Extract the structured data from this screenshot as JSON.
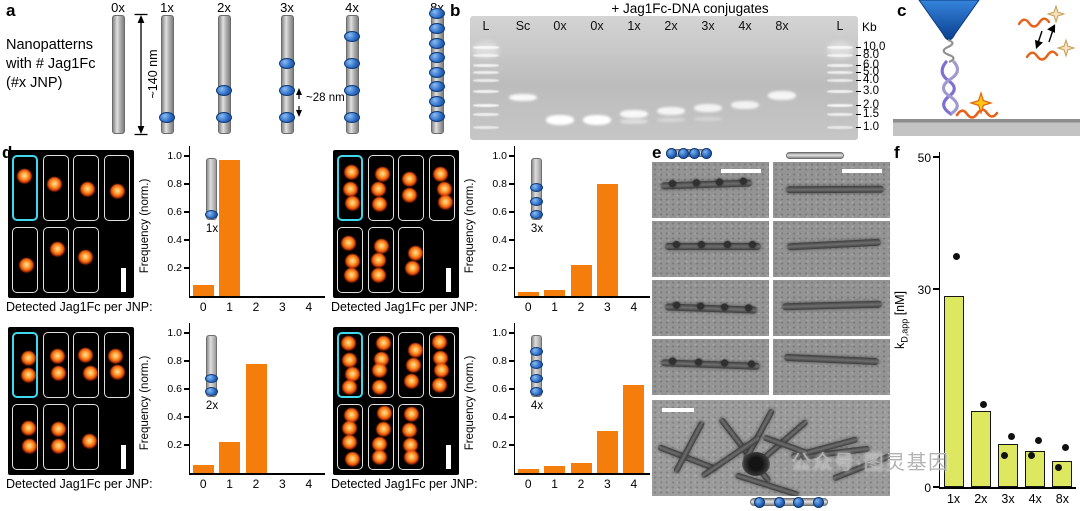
{
  "watermark": "公众号·图灵基因",
  "panel_a": {
    "label": "a",
    "caption_lines": [
      "Nanopatterns",
      "with # Jag1Fc",
      "(#x JNP)"
    ],
    "height_annotation": "~140 nm",
    "spacing_annotation": "~28 nm",
    "rods": [
      {
        "label": "0x",
        "dots": 0
      },
      {
        "label": "1x",
        "dots": 1
      },
      {
        "label": "2x",
        "dots": 2
      },
      {
        "label": "3x",
        "dots": 3
      },
      {
        "label": "4x",
        "dots": 4
      },
      {
        "label": "8x",
        "dots": 8
      }
    ]
  },
  "panel_b": {
    "label": "b",
    "header": "+ Jag1Fc-DNA conjugates",
    "kb_title": "Kb",
    "ladder_marks": [
      {
        "kb": "10.0",
        "y": 30
      },
      {
        "kb": "8.0",
        "y": 38
      },
      {
        "kb": "6.0",
        "y": 48
      },
      {
        "kb": "5.0",
        "y": 55
      },
      {
        "kb": "4.0",
        "y": 63
      },
      {
        "kb": "3.0",
        "y": 74
      },
      {
        "kb": "2.0",
        "y": 88
      },
      {
        "kb": "1.5",
        "y": 97
      },
      {
        "kb": "1.0",
        "y": 110
      }
    ],
    "lanes": [
      {
        "label": "L",
        "ladder": true
      },
      {
        "label": "Sc",
        "bands": [
          {
            "y": 78,
            "h": 7,
            "a": 0.92
          }
        ]
      },
      {
        "label": "0x",
        "bands": [
          {
            "y": 99,
            "h": 10,
            "a": 1
          }
        ]
      },
      {
        "label": "0x",
        "conjugate": true,
        "bands": [
          {
            "y": 99,
            "h": 10,
            "a": 1
          }
        ]
      },
      {
        "label": "1x",
        "conjugate": true,
        "bands": [
          {
            "y": 94,
            "h": 8,
            "a": 0.9
          },
          {
            "y": 103,
            "h": 5,
            "a": 0.45
          }
        ]
      },
      {
        "label": "2x",
        "conjugate": true,
        "bands": [
          {
            "y": 91,
            "h": 8,
            "a": 0.85
          },
          {
            "y": 102,
            "h": 4,
            "a": 0.35
          }
        ]
      },
      {
        "label": "3x",
        "conjugate": true,
        "bands": [
          {
            "y": 88,
            "h": 8,
            "a": 0.82
          },
          {
            "y": 101,
            "h": 4,
            "a": 0.3
          }
        ]
      },
      {
        "label": "4x",
        "conjugate": true,
        "bands": [
          {
            "y": 85,
            "h": 8,
            "a": 0.8
          }
        ]
      },
      {
        "label": "8x",
        "conjugate": true,
        "bands": [
          {
            "y": 75,
            "h": 9,
            "a": 0.85
          }
        ]
      },
      {
        "label": "L",
        "ladder": true
      }
    ]
  },
  "panel_c": {
    "label": "c"
  },
  "panel_d": {
    "label": "d",
    "x_caption": "Detected Jag1Fc per JNP:",
    "ylabel": "Frequency (norm.)",
    "y_ticks": [
      "0.2",
      "0.4",
      "0.6",
      "0.8",
      "1.0"
    ],
    "x_ticks": [
      "0",
      "1",
      "2",
      "3",
      "4"
    ],
    "charts": [
      {
        "condition": "1x",
        "n": 1,
        "values": [
          0.08,
          0.97,
          0,
          0,
          0
        ],
        "boxes": [
          1,
          1,
          1,
          1,
          1,
          1,
          1
        ]
      },
      {
        "condition": "3x",
        "n": 3,
        "values": [
          0.03,
          0.04,
          0.22,
          0.8,
          0
        ],
        "boxes": [
          3,
          3,
          2,
          3,
          3,
          3,
          2
        ]
      },
      {
        "condition": "2x",
        "n": 2,
        "values": [
          0.06,
          0.22,
          0.78,
          0,
          0
        ],
        "boxes": [
          2,
          2,
          2,
          2,
          2,
          2,
          1
        ]
      },
      {
        "condition": "4x",
        "n": 4,
        "values": [
          0.03,
          0.05,
          0.07,
          0.3,
          0.63
        ],
        "boxes": [
          4,
          4,
          3,
          4,
          4,
          4,
          4
        ]
      }
    ]
  },
  "panel_e": {
    "label": "e"
  },
  "panel_f": {
    "label": "f",
    "ylabel_main": "k",
    "ylabel_sub": "D,app",
    "ylabel_unit": " [nM]",
    "chart": {
      "type": "bar",
      "categories": [
        "1x",
        "2x",
        "3x",
        "4x",
        "8x"
      ],
      "bar_values": [
        29,
        11.5,
        6.5,
        5.5,
        4
      ],
      "dot_values": [
        [
          35
        ],
        [
          12.5
        ],
        [
          7.7,
          4.8
        ],
        [
          7,
          4.7
        ],
        [
          6,
          3
        ]
      ],
      "ylim": [
        0,
        50
      ],
      "y_ticks": [
        50,
        30,
        0
      ],
      "bar_color": "#dde860"
    }
  }
}
